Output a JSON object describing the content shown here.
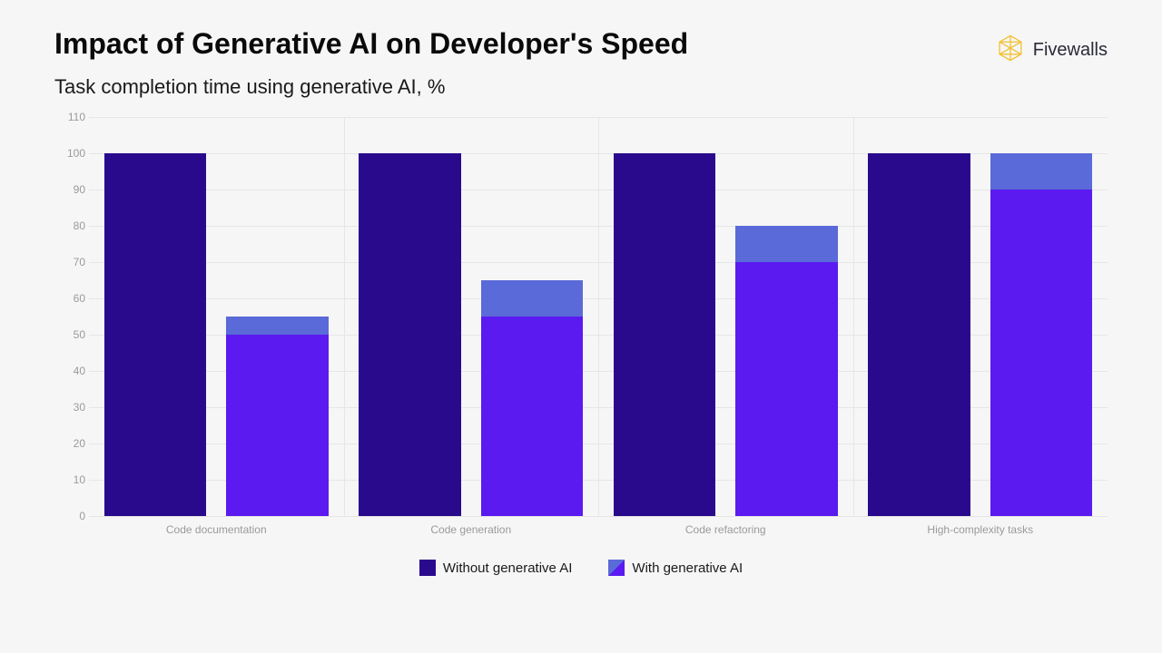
{
  "header": {
    "title": "Impact of Generative AI on Developer's Speed",
    "subtitle": "Task completion time using generative AI, %",
    "brand": "Fivewalls"
  },
  "chart": {
    "type": "bar",
    "background": "#f6f6f6",
    "grid_color": "#e6e6e6",
    "ylabel_color": "#9a9a9a",
    "xlabel_color": "#9a9a9a",
    "ylim": [
      0,
      110
    ],
    "yticks": [
      0,
      10,
      20,
      30,
      40,
      50,
      60,
      70,
      80,
      90,
      100,
      110
    ],
    "categories": [
      "Code documentation",
      "Code generation",
      "Code refactoring",
      "High-complexity tasks"
    ],
    "series": [
      {
        "name": "Without generative AI",
        "color": "#2a0a8c",
        "values": [
          100,
          100,
          100,
          100
        ]
      },
      {
        "name": "With generative AI",
        "color_main": "#5a1af0",
        "color_top": "#5a6ad8",
        "values_main": [
          50,
          55,
          70,
          90
        ],
        "values_top": [
          55,
          65,
          80,
          100
        ]
      }
    ],
    "bar_width_pct": 10,
    "group_gap_pct": 2,
    "title_fontsize": 32,
    "subtitle_fontsize": 22,
    "xlabel_fontsize": 12,
    "ylabel_fontsize": 12,
    "legend_fontsize": 15
  },
  "legend": {
    "items": [
      {
        "label": "Without generative AI",
        "color": "#2a0a8c"
      },
      {
        "label": "With generative AI",
        "color": "#5a1af0",
        "color2": "#5a6ad8"
      }
    ]
  },
  "brand_icon_color": "#f2c030"
}
